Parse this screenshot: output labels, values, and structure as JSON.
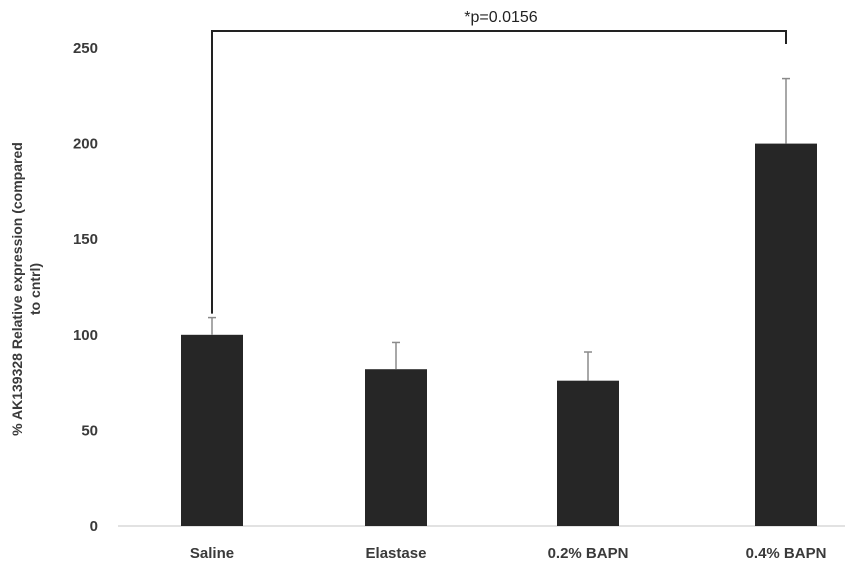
{
  "chart_data": {
    "type": "bar",
    "categories": [
      "Saline",
      "Elastase",
      "0.2% BAPN",
      "0.4% BAPN"
    ],
    "values": [
      100,
      82,
      76,
      200
    ],
    "errors": [
      9,
      14,
      15,
      34
    ],
    "ylabel_lines": [
      "% AK139328 Relative expression (compared",
      "to cntrl)"
    ],
    "xlabel": "",
    "ylim": [
      0,
      250
    ],
    "yticks": [
      0,
      50,
      100,
      150,
      200,
      250
    ],
    "yticks_labels": [
      "0",
      "50",
      "100",
      "150",
      "200",
      "250"
    ],
    "grid": false,
    "bar_color": "#262626",
    "annotation": {
      "text": "*p=0.0156",
      "from_category": 0,
      "to_category": 3
    }
  }
}
